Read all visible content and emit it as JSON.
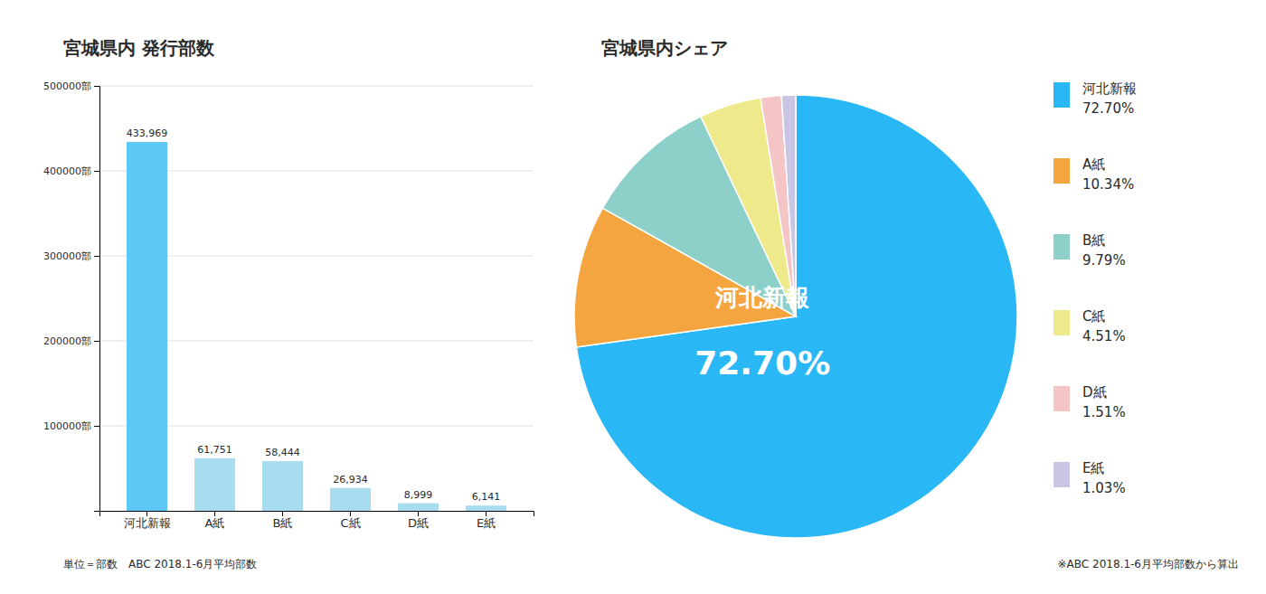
{
  "chart_data": [
    {
      "type": "bar",
      "title": "宮城県内 発行部数",
      "categories": [
        "河北新報",
        "A紙",
        "B紙",
        "C紙",
        "D紙",
        "E紙"
      ],
      "values": [
        433969,
        61751,
        58444,
        26934,
        8999,
        6141
      ],
      "value_labels": [
        "433,969",
        "61,751",
        "58,444",
        "26,934",
        "8,999",
        "6,141"
      ],
      "data_labels": true,
      "colors": [
        "#5BC8F5",
        "#A8DDEF",
        "#A8DDEF",
        "#A8DDEF",
        "#A8DDEF",
        "#A8DDEF"
      ],
      "ylim": [
        0,
        500000
      ],
      "yticks": [
        {
          "value": 100000,
          "label": "100000部"
        },
        {
          "value": 200000,
          "label": "200000部"
        },
        {
          "value": 300000,
          "label": "300000部"
        },
        {
          "value": 400000,
          "label": "400000部"
        },
        {
          "value": 500000,
          "label": "500000部"
        }
      ],
      "grid": true,
      "annotations": [
        "単位＝部数　ABC 2018.1-6月平均部数"
      ]
    },
    {
      "type": "pie",
      "title": "宮城県内シェア",
      "categories": [
        "河北新報",
        "A紙",
        "B紙",
        "C紙",
        "D紙",
        "E紙"
      ],
      "values": [
        72.7,
        10.34,
        9.79,
        4.51,
        1.51,
        1.03
      ],
      "value_labels": [
        "72.70%",
        "10.34%",
        "9.79%",
        "4.51%",
        "1.51%",
        "1.03%"
      ],
      "colors": [
        "#29B8F5",
        "#F5A53F",
        "#8DCFC9",
        "#EEE98A",
        "#F5C4C4",
        "#C8C5E5"
      ],
      "legend": "right",
      "annotations": [
        "※ABC 2018.1-6月平均部数から算出"
      ]
    }
  ]
}
